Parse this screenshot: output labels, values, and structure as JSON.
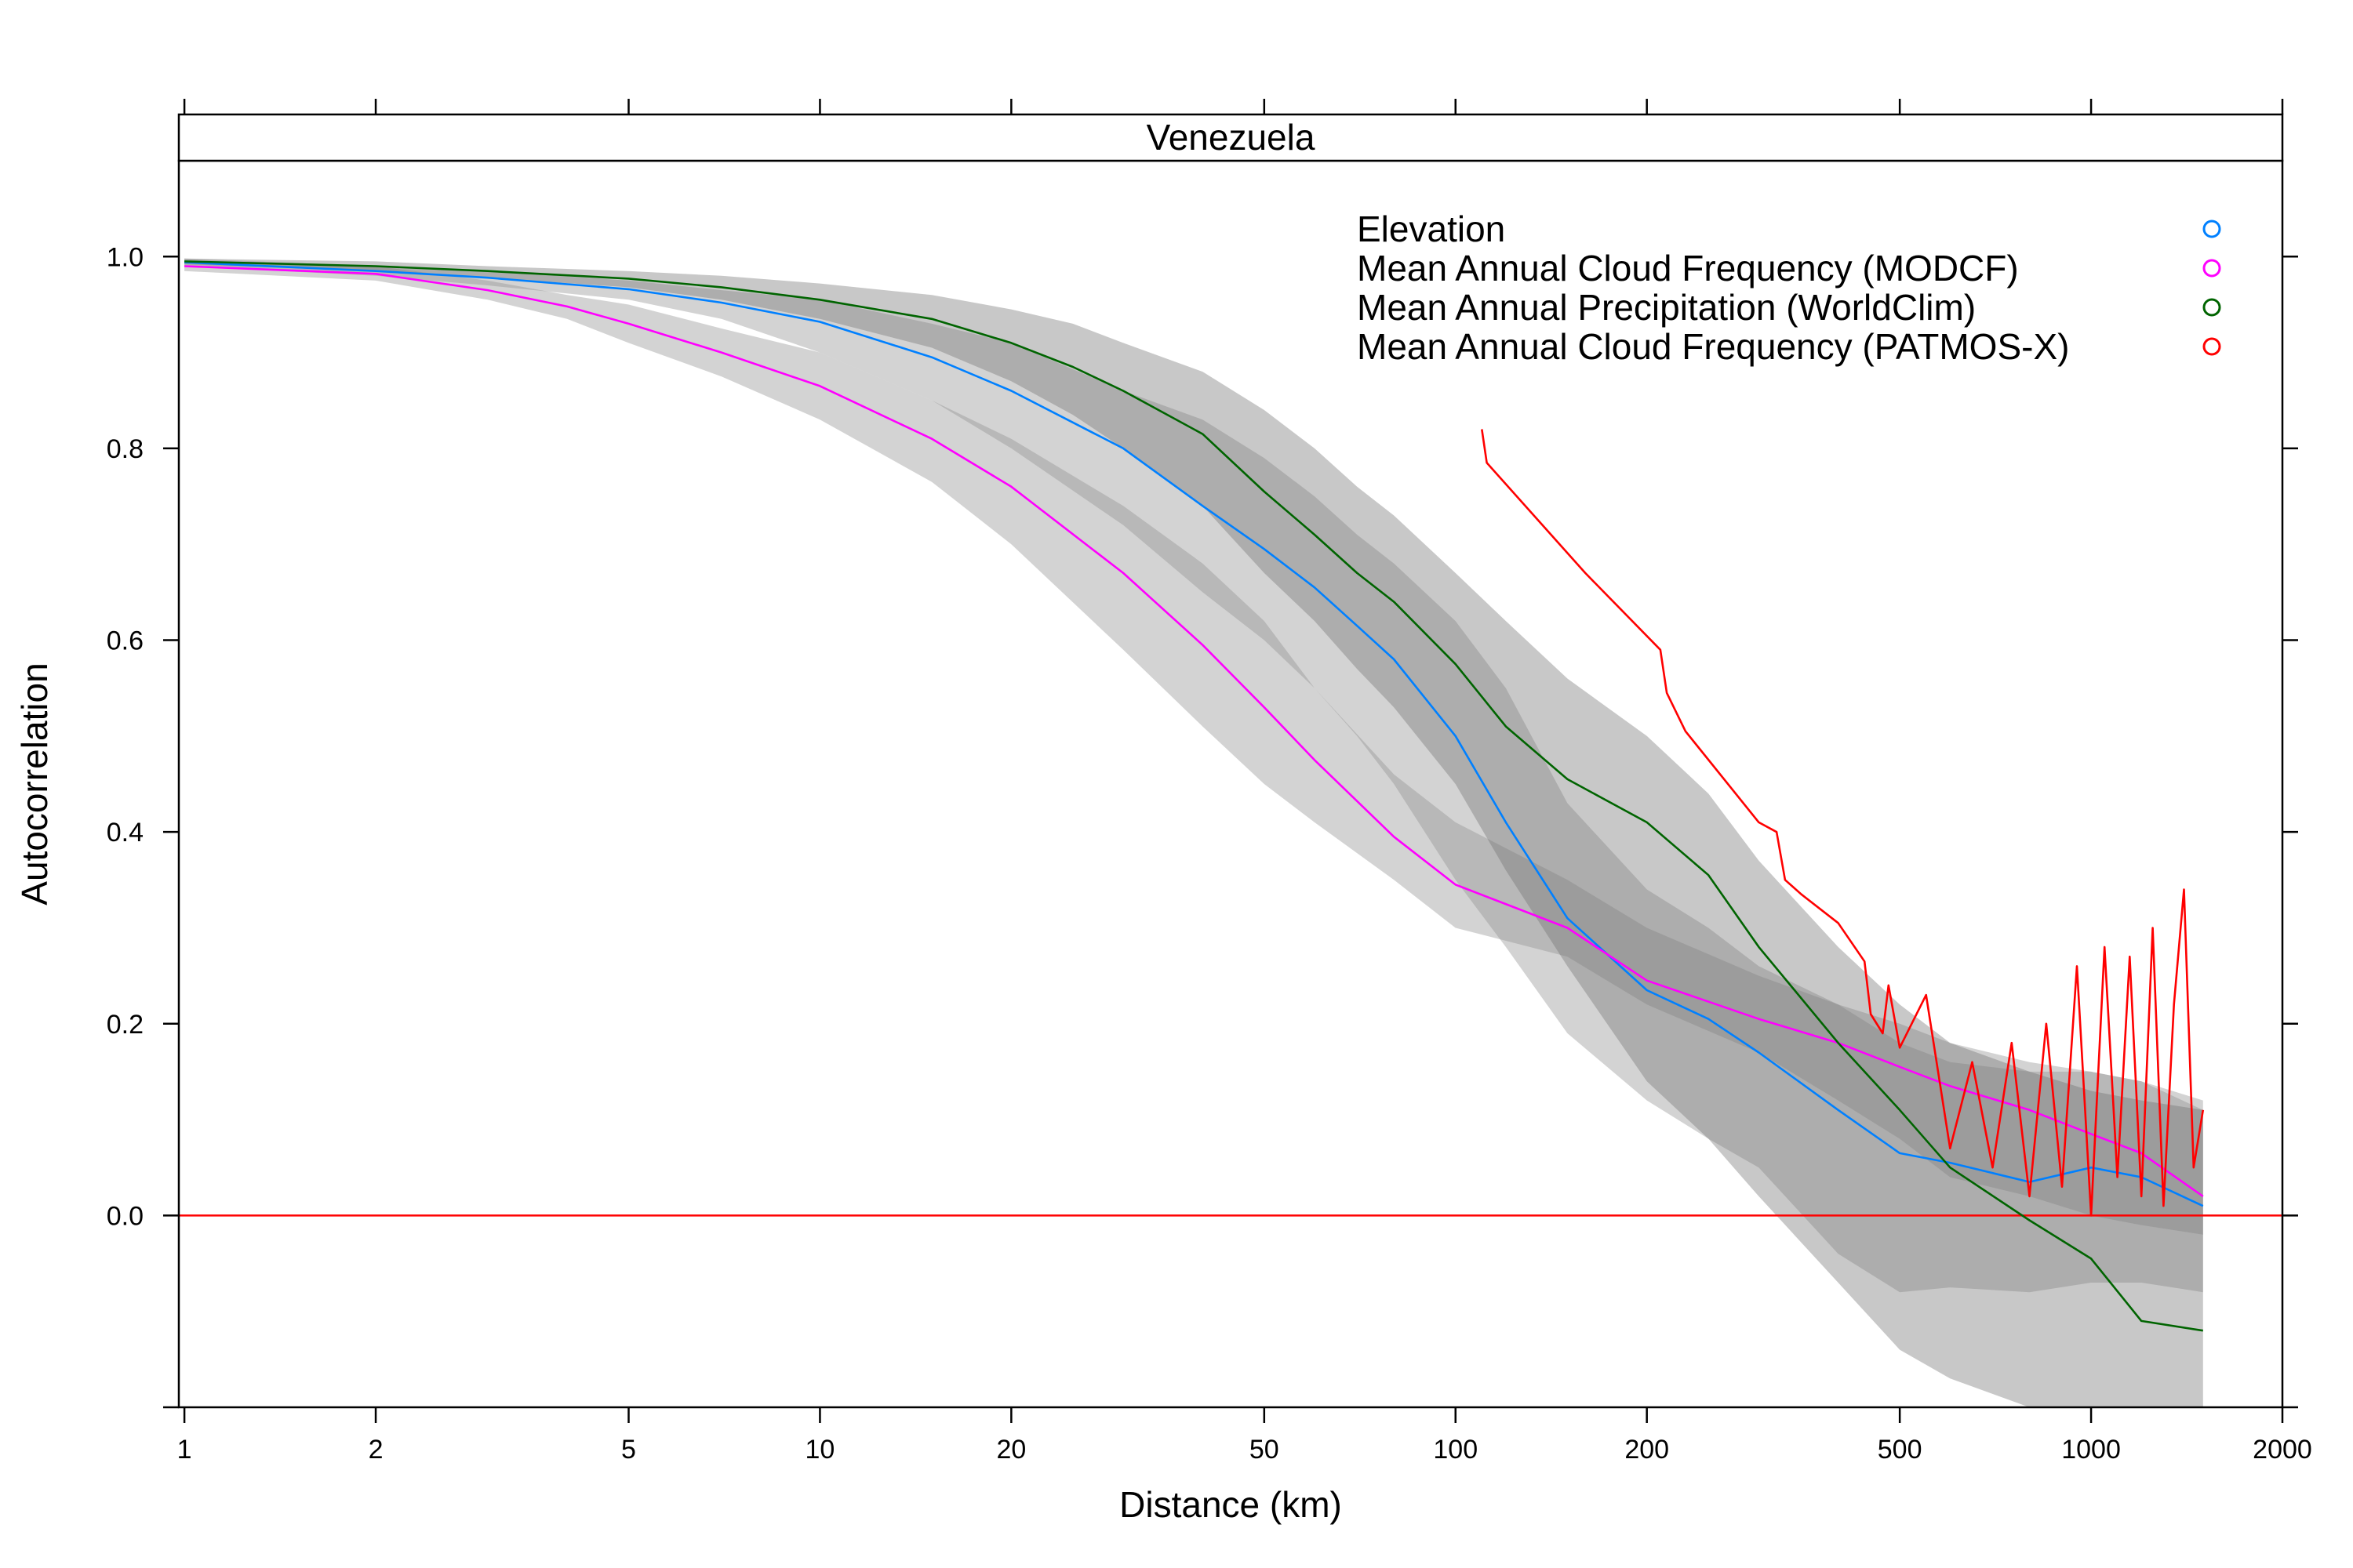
{
  "chart_data": {
    "type": "line",
    "panel_title": "Venezuela",
    "xlabel": "Distance (km)",
    "ylabel": "Autocorrelation",
    "x_scale": "log",
    "xlim": [
      0.98,
      2000
    ],
    "ylim": [
      -0.2,
      1.1
    ],
    "x_ticks": [
      1,
      2,
      5,
      10,
      20,
      50,
      100,
      200,
      500,
      1000,
      2000
    ],
    "x_tick_labels": [
      "1",
      "2",
      "5",
      "10",
      "20",
      "50",
      "100",
      "200",
      "500",
      "1000",
      "2000"
    ],
    "y_ticks": [
      0.0,
      0.2,
      0.4,
      0.6,
      0.8,
      1.0
    ],
    "y_tick_labels": [
      "0.0",
      "0.2",
      "0.4",
      "0.6",
      "0.8",
      "1.0"
    ],
    "reference_line": {
      "y": 0,
      "color": "#ff0000"
    },
    "legend_position": "top-right",
    "series": [
      {
        "name": "Elevation",
        "color": "#0080ff",
        "x": [
          1,
          2,
          3,
          5,
          7,
          10,
          15,
          20,
          30,
          40,
          50,
          60,
          70,
          80,
          100,
          120,
          150,
          200,
          250,
          300,
          400,
          500,
          600,
          800,
          1000,
          1200,
          1500
        ],
        "y": [
          0.994,
          0.985,
          0.978,
          0.966,
          0.952,
          0.932,
          0.895,
          0.86,
          0.8,
          0.74,
          0.695,
          0.655,
          0.615,
          0.58,
          0.5,
          0.41,
          0.31,
          0.235,
          0.205,
          0.17,
          0.11,
          0.065,
          0.055,
          0.035,
          0.05,
          0.04,
          0.01
        ],
        "band_low": [
          0.99,
          0.98,
          0.97,
          0.955,
          0.935,
          0.9,
          0.85,
          0.8,
          0.72,
          0.65,
          0.6,
          0.55,
          0.5,
          0.45,
          0.35,
          0.28,
          0.19,
          0.12,
          0.08,
          0.05,
          -0.04,
          -0.08,
          -0.075,
          -0.08,
          -0.07,
          -0.07,
          -0.08
        ],
        "band_high": [
          0.998,
          0.99,
          0.985,
          0.975,
          0.965,
          0.955,
          0.93,
          0.91,
          0.86,
          0.83,
          0.79,
          0.75,
          0.71,
          0.68,
          0.62,
          0.55,
          0.43,
          0.34,
          0.3,
          0.26,
          0.22,
          0.18,
          0.16,
          0.15,
          0.15,
          0.14,
          0.11
        ]
      },
      {
        "name": "Mean Annual Cloud Frequency (MODCF)",
        "color": "#ff00ff",
        "x": [
          1,
          2,
          3,
          4,
          5,
          7,
          10,
          15,
          20,
          30,
          40,
          50,
          60,
          80,
          100,
          150,
          200,
          300,
          400,
          500,
          600,
          800,
          1000,
          1200,
          1500
        ],
        "y": [
          0.99,
          0.982,
          0.965,
          0.948,
          0.93,
          0.9,
          0.865,
          0.81,
          0.76,
          0.67,
          0.595,
          0.53,
          0.475,
          0.395,
          0.345,
          0.3,
          0.245,
          0.205,
          0.18,
          0.155,
          0.135,
          0.11,
          0.085,
          0.065,
          0.02
        ],
        "band_low": [
          0.985,
          0.975,
          0.955,
          0.935,
          0.91,
          0.875,
          0.83,
          0.765,
          0.7,
          0.59,
          0.51,
          0.45,
          0.41,
          0.35,
          0.3,
          0.27,
          0.22,
          0.17,
          0.12,
          0.08,
          0.04,
          0.02,
          0.0,
          -0.01,
          -0.02
        ],
        "band_high": [
          0.995,
          0.99,
          0.975,
          0.96,
          0.95,
          0.925,
          0.9,
          0.85,
          0.81,
          0.74,
          0.68,
          0.62,
          0.55,
          0.46,
          0.41,
          0.35,
          0.3,
          0.25,
          0.22,
          0.2,
          0.18,
          0.16,
          0.15,
          0.14,
          0.12
        ]
      },
      {
        "name": "Mean Annual Precipitation (WorldClim)",
        "color": "#006400",
        "x": [
          1,
          2,
          3,
          5,
          7,
          10,
          15,
          20,
          25,
          30,
          40,
          50,
          60,
          70,
          80,
          100,
          120,
          150,
          200,
          250,
          300,
          400,
          500,
          600,
          800,
          1000,
          1200,
          1500
        ],
        "y": [
          0.995,
          0.99,
          0.985,
          0.977,
          0.968,
          0.955,
          0.935,
          0.91,
          0.885,
          0.86,
          0.815,
          0.755,
          0.71,
          0.67,
          0.64,
          0.575,
          0.51,
          0.455,
          0.41,
          0.355,
          0.28,
          0.18,
          0.11,
          0.05,
          -0.005,
          -0.045,
          -0.11,
          -0.12
        ],
        "band_low": [
          0.992,
          0.985,
          0.978,
          0.968,
          0.955,
          0.935,
          0.905,
          0.87,
          0.835,
          0.8,
          0.74,
          0.67,
          0.62,
          0.57,
          0.53,
          0.45,
          0.36,
          0.26,
          0.14,
          0.08,
          0.02,
          -0.07,
          -0.14,
          -0.17,
          -0.2,
          -0.24,
          -0.28,
          -0.33
        ],
        "band_high": [
          0.998,
          0.995,
          0.99,
          0.985,
          0.98,
          0.972,
          0.96,
          0.945,
          0.93,
          0.91,
          0.88,
          0.84,
          0.8,
          0.76,
          0.73,
          0.67,
          0.62,
          0.56,
          0.5,
          0.44,
          0.37,
          0.28,
          0.22,
          0.18,
          0.15,
          0.13,
          0.12,
          0.11
        ]
      },
      {
        "name": "Mean Annual Cloud Frequency (PATMOS-X)",
        "color": "#ff0000",
        "x": [
          110,
          112,
          160,
          210,
          215,
          230,
          300,
          320,
          330,
          350,
          400,
          440,
          450,
          470,
          480,
          500,
          550,
          600,
          650,
          700,
          750,
          800,
          850,
          900,
          950,
          1000,
          1050,
          1100,
          1150,
          1200,
          1250,
          1300,
          1350,
          1400,
          1450,
          1500
        ],
        "y": [
          0.82,
          0.785,
          0.67,
          0.59,
          0.545,
          0.505,
          0.41,
          0.4,
          0.35,
          0.335,
          0.305,
          0.265,
          0.21,
          0.19,
          0.24,
          0.175,
          0.23,
          0.07,
          0.16,
          0.05,
          0.18,
          0.02,
          0.2,
          0.03,
          0.26,
          0.0,
          0.28,
          0.04,
          0.27,
          0.02,
          0.3,
          0.01,
          0.22,
          0.34,
          0.05,
          0.11
        ]
      }
    ]
  }
}
